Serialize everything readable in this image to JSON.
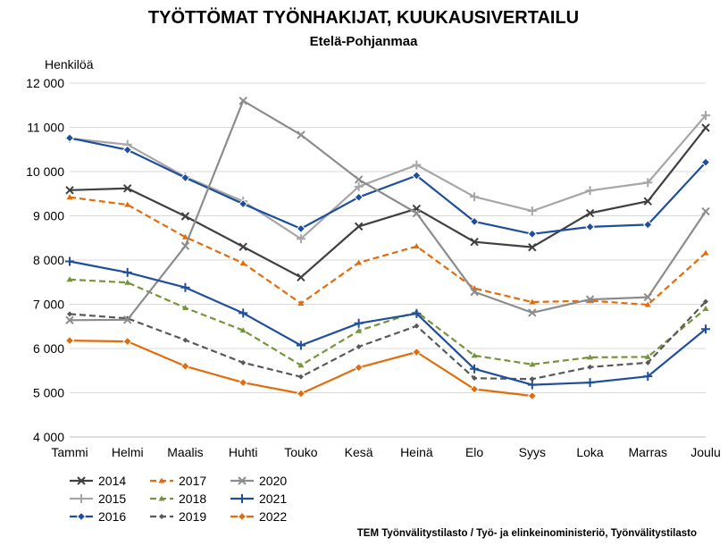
{
  "chart_data": {
    "type": "line",
    "title": "TYÖTTÖMAT TYÖNHAKIJAT, KUUKAUSIVERTAILU",
    "subtitle": "Etelä-Pohjanmaa",
    "ylabel": "Henkilöä",
    "xlabel": "",
    "ylim": [
      4000,
      12000
    ],
    "ytick_step": 1000,
    "y_tick_labels": [
      "4 000",
      "5 000",
      "6 000",
      "7 000",
      "8 000",
      "9 000",
      "10 000",
      "11 000",
      "12 000"
    ],
    "grid": true,
    "legend_position": "bottom-left",
    "categories": [
      "Tammi",
      "Helmi",
      "Maalis",
      "Huhti",
      "Touko",
      "Kesä",
      "Heinä",
      "Elo",
      "Syys",
      "Loka",
      "Marras",
      "Joulu"
    ],
    "series": [
      {
        "name": "2014",
        "color": "#404040",
        "dash": "solid",
        "marker": "x",
        "values": [
          9580,
          9620,
          8990,
          8300,
          7610,
          8760,
          9160,
          8410,
          8290,
          9060,
          9330,
          10990
        ]
      },
      {
        "name": "2015",
        "color": "#a6a6a6",
        "dash": "solid",
        "marker": "plus",
        "values": [
          10750,
          10610,
          9880,
          9330,
          8480,
          9660,
          10150,
          9430,
          9110,
          9570,
          9750,
          11270
        ]
      },
      {
        "name": "2016",
        "color": "#1f4e9c",
        "dash": "solid",
        "marker": "diamond",
        "values": [
          10760,
          10490,
          9860,
          9270,
          8710,
          9420,
          9910,
          8870,
          8590,
          8750,
          8800,
          10210
        ]
      },
      {
        "name": "2017",
        "color": "#e36c0a",
        "dash": "dash",
        "marker": "triangle",
        "values": [
          9420,
          9250,
          8520,
          7930,
          7020,
          7940,
          8310,
          7360,
          7050,
          7080,
          6990,
          8160
        ]
      },
      {
        "name": "2018",
        "color": "#77933c",
        "dash": "dash",
        "marker": "triangle",
        "values": [
          7560,
          7490,
          6920,
          6410,
          5620,
          6400,
          6830,
          5840,
          5640,
          5800,
          5810,
          6900
        ]
      },
      {
        "name": "2019",
        "color": "#595959",
        "dash": "dash",
        "marker": "diamond-small",
        "values": [
          6780,
          6680,
          6190,
          5680,
          5360,
          6040,
          6510,
          5330,
          5310,
          5580,
          5680,
          7060
        ]
      },
      {
        "name": "2020",
        "color": "#8c8c8c",
        "dash": "solid",
        "marker": "x",
        "values": [
          6640,
          6650,
          8320,
          11600,
          10830,
          9820,
          9060,
          7280,
          6810,
          7110,
          7160,
          9100
        ]
      },
      {
        "name": "2021",
        "color": "#1f4e9c",
        "dash": "solid",
        "marker": "plus",
        "values": [
          7970,
          7720,
          7380,
          6800,
          6070,
          6570,
          6790,
          5540,
          5180,
          5230,
          5370,
          6440
        ]
      },
      {
        "name": "2022",
        "color": "#e36c0a",
        "dash": "solid",
        "marker": "diamond",
        "values": [
          6180,
          6160,
          5600,
          5230,
          4980,
          5570,
          5920,
          5080,
          4930,
          null,
          null,
          null
        ]
      }
    ],
    "source": "TEM Työnvälitystilasto / Työ- ja elinkeinoministeriö, Työnvälitystilasto"
  }
}
